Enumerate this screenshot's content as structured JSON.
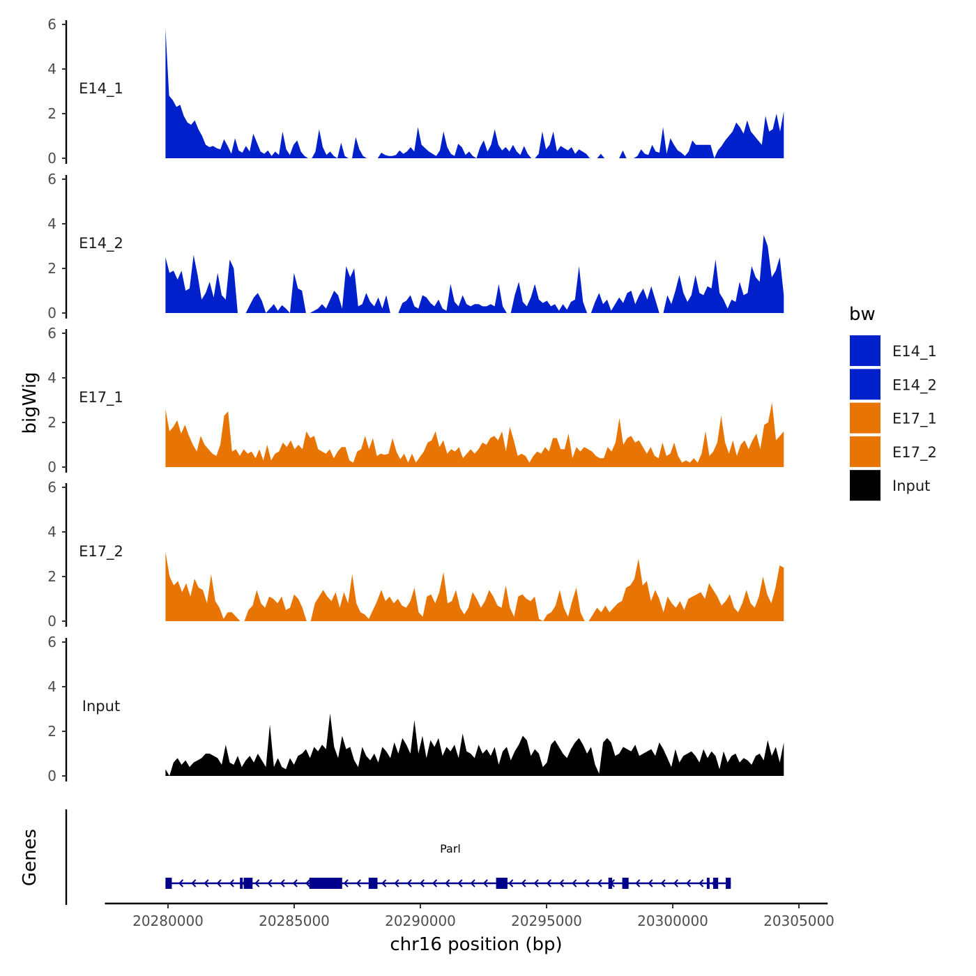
{
  "chart_data": {
    "type": "area",
    "chromosome": "chr16",
    "xlabel": "chr16 position (bp)",
    "ylabel": "bigWig",
    "genes_label": "Genes",
    "xlim": [
      20277500,
      20306000
    ],
    "x_ticks": [
      20280000,
      20285000,
      20290000,
      20295000,
      20300000,
      20305000
    ],
    "x_tick_labels": [
      "20280000",
      "20285000",
      "20290000",
      "20295000",
      "20300000",
      "20305000"
    ],
    "ylim": [
      0,
      6
    ],
    "y_ticks": [
      0,
      2,
      4,
      6
    ],
    "y_tick_labels": [
      "0",
      "2",
      "4",
      "6"
    ],
    "data_range": [
      20279900,
      20304400
    ],
    "legend": {
      "title": "bw",
      "entries": [
        {
          "label": "E14_1",
          "color": "#0020CC"
        },
        {
          "label": "E14_2",
          "color": "#0020CC"
        },
        {
          "label": "E17_1",
          "color": "#E87503"
        },
        {
          "label": "E17_2",
          "color": "#E87503"
        },
        {
          "label": "Input",
          "color": "#000000"
        }
      ]
    },
    "series": [
      {
        "name": "E14_1",
        "color": "#0020CC",
        "values": [
          5.8,
          2.8,
          2.6,
          2.3,
          2.4,
          1.9,
          1.6,
          1.5,
          1.7,
          1.3,
          1.0,
          0.6,
          0.5,
          0.55,
          0.45,
          0.4,
          0.85,
          0.55,
          0.2,
          0.9,
          0.35,
          0.25,
          0.55,
          0.3,
          1.1,
          0.7,
          0.3,
          0.2,
          0.35,
          0.1,
          0.3,
          0.15,
          1.2,
          0.4,
          0.15,
          0.6,
          0.8,
          0.3,
          0.1,
          0,
          0,
          0.3,
          1.3,
          0.5,
          0.15,
          0.3,
          0.1,
          0,
          0.7,
          0.1,
          0,
          0,
          0.95,
          0.4,
          0.1,
          0,
          0,
          0,
          0,
          0.25,
          0.15,
          0.1,
          0.1,
          0.15,
          0.35,
          0.2,
          0.3,
          0.5,
          0.3,
          1.4,
          0.6,
          0.45,
          0.3,
          0.2,
          0.1,
          0.35,
          1.2,
          0.5,
          0.2,
          0.1,
          0.65,
          0.5,
          0.15,
          0.3,
          0.1,
          0,
          0.5,
          0.8,
          0.3,
          0.6,
          1.3,
          0.6,
          0.35,
          0.5,
          0.3,
          0.6,
          0.3,
          0.15,
          0.55,
          0.2,
          0,
          0,
          0.2,
          1.2,
          0.4,
          0.6,
          1.2,
          0.3,
          0.55,
          0.45,
          0.35,
          0.5,
          0.2,
          0.4,
          0.3,
          0.2,
          0,
          0,
          0,
          0.2,
          0,
          0,
          0,
          0,
          0,
          0.35,
          0,
          0,
          0,
          0.1,
          0.4,
          0.2,
          0.15,
          0.6,
          0.3,
          0.25,
          1.4,
          0.2,
          0.9,
          0.6,
          0.35,
          0.25,
          0.1,
          0.3,
          0.8,
          0.6,
          0.6,
          0.6,
          0.6,
          0.6,
          0,
          0.35,
          0.55,
          0.8,
          1.0,
          1.2,
          1.6,
          1.4,
          1.1,
          1.7,
          1.2,
          1.0,
          0.8,
          0.6,
          1.9,
          1.2,
          1.3,
          2.0,
          1.2,
          2.1
        ]
      },
      {
        "name": "E14_2",
        "color": "#0020CC",
        "values": [
          2.5,
          1.8,
          1.9,
          1.5,
          1.9,
          1.0,
          1.1,
          2.6,
          1.7,
          0.6,
          0.9,
          1.4,
          0.7,
          1.8,
          0.8,
          0.6,
          2.4,
          2.0,
          0,
          0,
          0,
          0.35,
          0.7,
          0.9,
          0.55,
          0,
          0.2,
          0.4,
          0.1,
          0.35,
          0.2,
          0,
          1.8,
          1.1,
          1.0,
          0,
          0,
          0.1,
          0.2,
          0.4,
          0.2,
          0.6,
          1.0,
          0.8,
          0.2,
          2.1,
          1.6,
          2.0,
          0.3,
          0.4,
          0.9,
          0.5,
          0.3,
          0.7,
          0.2,
          0.8,
          0,
          0,
          0,
          0.45,
          0.55,
          0.8,
          0.3,
          0.2,
          0.8,
          0.7,
          0.45,
          0.3,
          0.6,
          0.2,
          0.1,
          1.3,
          0.5,
          0.3,
          0.8,
          0.4,
          0.3,
          0.4,
          0.4,
          0.3,
          0.3,
          0.4,
          0.3,
          1.3,
          0.3,
          0,
          0,
          0.8,
          1.4,
          0.5,
          0.3,
          0.7,
          1.3,
          0.6,
          0.45,
          0.55,
          0.3,
          0.4,
          0.1,
          0.4,
          0.15,
          0.5,
          0.6,
          2.1,
          0.5,
          0,
          0,
          0.5,
          0.9,
          0.4,
          0.6,
          0.1,
          0.4,
          0.7,
          0.45,
          0.9,
          1.0,
          0.4,
          0.8,
          1.1,
          0.6,
          1.2,
          0.6,
          0,
          0,
          0.8,
          0.4,
          1.0,
          1.7,
          0.9,
          0.5,
          0.8,
          1.7,
          0.9,
          0.8,
          1.2,
          1.1,
          2.4,
          0.9,
          0.6,
          0.2,
          0.6,
          0.5,
          1.4,
          0.8,
          0.9,
          2.1,
          1.6,
          1.4,
          3.5,
          3.0,
          1.6,
          1.9,
          2.5,
          0.8
        ]
      },
      {
        "name": "E17_1",
        "color": "#E87503",
        "values": [
          2.6,
          1.6,
          1.8,
          2.1,
          1.5,
          1.9,
          1.4,
          1.0,
          0.7,
          1.4,
          1.0,
          0.8,
          0.6,
          0.5,
          1.0,
          2.3,
          2.5,
          0.7,
          0.8,
          0.5,
          0.8,
          0.6,
          0.7,
          0.4,
          0.8,
          0.3,
          1.0,
          0.3,
          0.6,
          0.7,
          1.1,
          0.9,
          1.2,
          0.8,
          1.0,
          0.8,
          1.6,
          1.3,
          1.4,
          0.8,
          0.7,
          0.6,
          0.8,
          0.4,
          0.7,
          0.9,
          0.9,
          0.3,
          0.2,
          0.7,
          0.8,
          1.4,
          0.8,
          1.3,
          0.5,
          0.6,
          0.55,
          0.6,
          1.3,
          0.7,
          0.35,
          0.6,
          0.2,
          0.6,
          0.2,
          0.45,
          0.7,
          1.1,
          1.2,
          1.6,
          0.9,
          1.2,
          0.6,
          0.8,
          0.7,
          0.9,
          0.4,
          0.6,
          0.8,
          0.6,
          0.8,
          1.1,
          1.0,
          1.3,
          1.4,
          1.2,
          1.6,
          0.7,
          1.8,
          1.2,
          0.5,
          0.6,
          0.5,
          0.2,
          0.5,
          0.7,
          0.6,
          0.9,
          0.7,
          1.3,
          1.3,
          0.8,
          0.8,
          1.5,
          0.4,
          0.9,
          0.7,
          0.9,
          0.8,
          0.7,
          0.5,
          0.4,
          0.4,
          0.9,
          0.7,
          1.1,
          2.2,
          1.0,
          1.3,
          1.4,
          1.1,
          1.2,
          0.9,
          0.6,
          0.9,
          0.5,
          0.4,
          1.1,
          0.5,
          0.6,
          1.1,
          0.5,
          0.2,
          0.3,
          0.2,
          0.4,
          0.2,
          0.6,
          1.6,
          0.5,
          0.7,
          1.1,
          2.3,
          1.1,
          0.6,
          1.2,
          0.5,
          1.0,
          1.2,
          0.8,
          1.2,
          1.5,
          0.8,
          1.9,
          2.0,
          2.9,
          1.2,
          1.4,
          1.6
        ]
      },
      {
        "name": "E17_2",
        "color": "#E87503",
        "values": [
          3.1,
          2.0,
          1.6,
          1.8,
          1.3,
          1.7,
          1.1,
          1.9,
          1.5,
          1.4,
          0.8,
          2.1,
          0.9,
          0.6,
          0.1,
          0.4,
          0.4,
          0.2,
          0,
          0,
          0.5,
          0.7,
          1.4,
          0.8,
          0.6,
          1.1,
          1.0,
          0.8,
          1.1,
          0.5,
          0.6,
          1.2,
          1.0,
          0.6,
          0,
          0,
          0.8,
          1.1,
          1.4,
          1.1,
          0.9,
          1.3,
          0.6,
          1.3,
          0.8,
          2.1,
          0.8,
          0.4,
          0.3,
          0.1,
          0.5,
          0.9,
          1.4,
          0.9,
          1.1,
          0.8,
          1.0,
          0.7,
          0.6,
          0.9,
          1.5,
          0.4,
          0.2,
          1.1,
          1.2,
          0.8,
          1.3,
          2.2,
          0.8,
          0.9,
          1.4,
          0.6,
          0.3,
          0.6,
          1.3,
          1.0,
          0.6,
          0.9,
          1.4,
          1.1,
          0.7,
          0.6,
          1.6,
          0.6,
          0.2,
          1.1,
          1.2,
          1.0,
          0.9,
          1.1,
          0.1,
          0,
          0.3,
          0.4,
          0.7,
          1.4,
          0.6,
          0.2,
          0.9,
          1.5,
          0.4,
          0,
          0,
          0.3,
          0.6,
          0.4,
          0.7,
          0.4,
          0.6,
          0.8,
          0.9,
          1.5,
          1.6,
          1.9,
          2.8,
          1.6,
          1.8,
          0.9,
          1.4,
          1.0,
          0.4,
          1.1,
          0.8,
          0.6,
          0.9,
          0.5,
          1.0,
          1.1,
          1.2,
          1.3,
          1.0,
          1.7,
          1.4,
          1.1,
          0.7,
          0.9,
          1.2,
          0.6,
          0.4,
          0.8,
          1.4,
          0.8,
          0.6,
          1.1,
          2.0,
          1.2,
          0.8,
          1.5,
          2.5,
          2.4
        ]
      },
      {
        "name": "Input",
        "color": "#000000",
        "values": [
          0.3,
          0,
          0.6,
          0.8,
          0.5,
          0.7,
          0.4,
          0.6,
          0.7,
          0.8,
          1.0,
          1.0,
          0.9,
          0.8,
          0.5,
          1.4,
          0.6,
          0.5,
          0.9,
          0.4,
          0.7,
          0.9,
          0.6,
          1.0,
          0.7,
          0.4,
          2.3,
          0.4,
          0.8,
          0.4,
          0.3,
          0.8,
          0.5,
          0.9,
          1.0,
          1.2,
          0.8,
          1.3,
          1.1,
          1.4,
          1.2,
          2.8,
          1.3,
          0.8,
          1.8,
          1.2,
          1.3,
          0.7,
          0.4,
          1.3,
          0.9,
          0.7,
          1.0,
          0.6,
          1.3,
          1.1,
          0.8,
          1.5,
          1.0,
          1.7,
          1.4,
          1.0,
          2.5,
          1.0,
          1.8,
          0.8,
          1.6,
          1.3,
          1.7,
          0.9,
          1.3,
          1.1,
          1.4,
          0.8,
          1.9,
          1.1,
          1.0,
          0.8,
          1.4,
          1.0,
          1.2,
          0.9,
          1.3,
          0.5,
          1.1,
          1.3,
          0.7,
          1.1,
          1.4,
          1.8,
          1.6,
          0.9,
          1.2,
          1.0,
          0.4,
          0.6,
          1.4,
          1.6,
          1.3,
          1.0,
          0.8,
          1.2,
          1.5,
          1.7,
          1.4,
          1.0,
          1.3,
          0.5,
          0.1,
          1.5,
          1.7,
          1.5,
          0.9,
          1.0,
          1.3,
          1.2,
          1.1,
          1.4,
          0.9,
          1.0,
          1.1,
          1.2,
          0.9,
          1.5,
          1.2,
          0.8,
          0.4,
          1.2,
          0.6,
          0.9,
          1.0,
          1.1,
          0.9,
          0.6,
          1.2,
          0.8,
          1.1,
          0.9,
          0.3,
          1.1,
          0.6,
          0.9,
          1.0,
          0.6,
          0.8,
          0.7,
          0.5,
          0.9,
          1.0,
          0.7,
          1.6,
          0.9,
          1.3,
          0.6,
          1.5
        ]
      }
    ],
    "gene": {
      "name": "Parl",
      "start": 20279900,
      "end": 20302300,
      "strand": "-",
      "color": "#00008B",
      "exons": [
        [
          20279900,
          20280150
        ],
        [
          20282850,
          20282950
        ],
        [
          20283000,
          20283350
        ],
        [
          20285600,
          20286900
        ],
        [
          20287950,
          20288300
        ],
        [
          20293000,
          20293450
        ],
        [
          20297450,
          20297600
        ],
        [
          20298000,
          20298250
        ],
        [
          20301350,
          20301450
        ],
        [
          20301600,
          20301800
        ],
        [
          20302100,
          20302300
        ]
      ]
    }
  }
}
